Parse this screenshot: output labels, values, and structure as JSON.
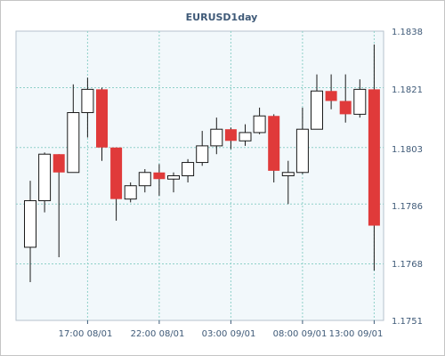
{
  "chart_data": {
    "type": "candlestick",
    "title": "EURUSD1day",
    "y_range": [
      1.1751,
      1.1838
    ],
    "y_ticks": [
      "1.1838",
      "1.1821",
      "1.1803",
      "1.1786",
      "1.1768",
      "1.1751"
    ],
    "x_ticks": [
      "17:00 08/01",
      "22:00 08/01",
      "03:00 09/01",
      "08:00 09/01",
      "13:00 09/01"
    ],
    "x_tick_candle_index": [
      4,
      9,
      14,
      19,
      24
    ],
    "grid": true,
    "colors": {
      "background": "#f2f8fb",
      "grid": "#8fd0c9",
      "axis_text": "#3f5a78",
      "bullish": "#ffffff",
      "bearish": "#e03a3a",
      "wick": "#1a1a1a"
    },
    "candles": [
      {
        "o": 1.1773,
        "h": 1.1793,
        "l": 1.17625,
        "c": 1.1787
      },
      {
        "o": 1.1787,
        "h": 1.18015,
        "l": 1.17835,
        "c": 1.1801
      },
      {
        "o": 1.1801,
        "h": 1.1801,
        "l": 1.177,
        "c": 1.17955
      },
      {
        "o": 1.17955,
        "h": 1.1822,
        "l": 1.17955,
        "c": 1.18135
      },
      {
        "o": 1.18135,
        "h": 1.1824,
        "l": 1.1806,
        "c": 1.18205
      },
      {
        "o": 1.18205,
        "h": 1.1821,
        "l": 1.1799,
        "c": 1.1803
      },
      {
        "o": 1.1803,
        "h": 1.1803,
        "l": 1.1781,
        "c": 1.17875
      },
      {
        "o": 1.17875,
        "h": 1.17925,
        "l": 1.17865,
        "c": 1.17915
      },
      {
        "o": 1.17915,
        "h": 1.17965,
        "l": 1.17895,
        "c": 1.17955
      },
      {
        "o": 1.17955,
        "h": 1.1798,
        "l": 1.17885,
        "c": 1.17935
      },
      {
        "o": 1.17935,
        "h": 1.17955,
        "l": 1.17895,
        "c": 1.17945
      },
      {
        "o": 1.17945,
        "h": 1.17995,
        "l": 1.17925,
        "c": 1.17985
      },
      {
        "o": 1.17985,
        "h": 1.1808,
        "l": 1.17975,
        "c": 1.18035
      },
      {
        "o": 1.18035,
        "h": 1.1812,
        "l": 1.1801,
        "c": 1.18085
      },
      {
        "o": 1.18085,
        "h": 1.1809,
        "l": 1.18025,
        "c": 1.1805
      },
      {
        "o": 1.1805,
        "h": 1.181,
        "l": 1.18035,
        "c": 1.18075
      },
      {
        "o": 1.18075,
        "h": 1.1815,
        "l": 1.1807,
        "c": 1.18125
      },
      {
        "o": 1.18125,
        "h": 1.1813,
        "l": 1.17925,
        "c": 1.1796
      },
      {
        "o": 1.17945,
        "h": 1.1799,
        "l": 1.1786,
        "c": 1.17955
      },
      {
        "o": 1.17955,
        "h": 1.1815,
        "l": 1.1795,
        "c": 1.18085
      },
      {
        "o": 1.18085,
        "h": 1.1825,
        "l": 1.18085,
        "c": 1.182
      },
      {
        "o": 1.182,
        "h": 1.1825,
        "l": 1.18145,
        "c": 1.1817
      },
      {
        "o": 1.1817,
        "h": 1.1825,
        "l": 1.18105,
        "c": 1.1813
      },
      {
        "o": 1.1813,
        "h": 1.18235,
        "l": 1.1812,
        "c": 1.18205
      },
      {
        "o": 1.18205,
        "h": 1.1834,
        "l": 1.1766,
        "c": 1.17795
      }
    ]
  }
}
